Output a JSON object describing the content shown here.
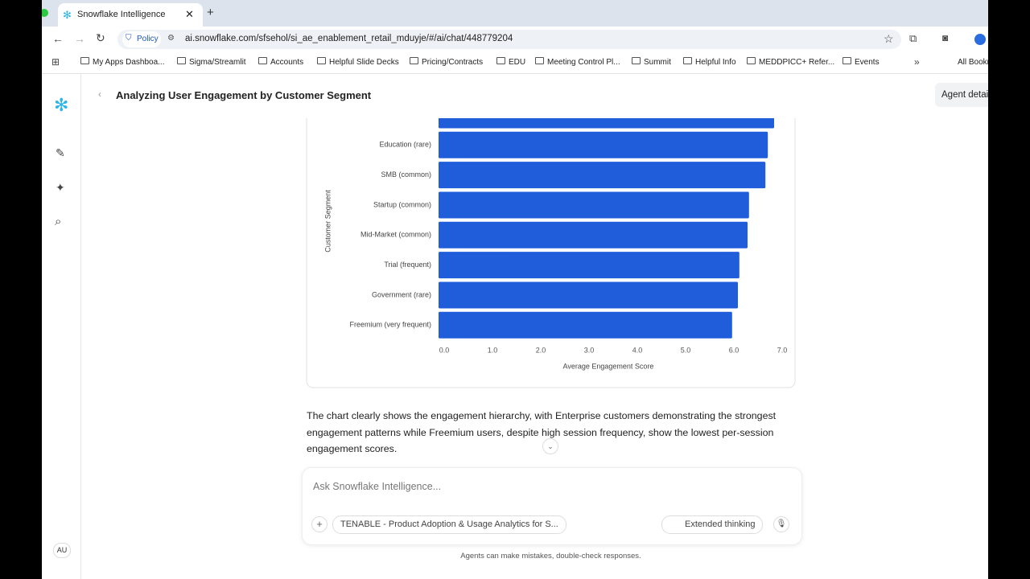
{
  "browser": {
    "tab_title": "Snowflake Intelligence",
    "policy": "Policy",
    "url": "ai.snowflake.com/sfsehol/si_ae_enablement_retail_mduyje/#/ai/chat/448779204",
    "bookmarks": [
      "My Apps Dashboa...",
      "Sigma/Streamlit",
      "Accounts",
      "Helpful Slide Decks",
      "Pricing/Contracts",
      "EDU",
      "Meeting Control Pl...",
      "Summit",
      "Helpful Info",
      "MEDDPICC+ Refer...",
      "Events"
    ],
    "all_bookmarks": "All Bookmarks"
  },
  "header": {
    "title": "Analyzing User Engagement by Customer Segment",
    "agent_button": "Agent details"
  },
  "sidebar": {
    "avatar": "AU"
  },
  "chart_data": {
    "type": "bar",
    "orientation": "horizontal",
    "color": "#1f5ddb",
    "y_label": "Customer Segment",
    "x_label": "Average Engagement Score",
    "categories": [
      null,
      "Education (rare)",
      "SMB (common)",
      "Startup (common)",
      "Mid-Market (common)",
      "Trial (frequent)",
      "Government (rare)",
      "Freemium (very frequent)"
    ],
    "values": [
      6.95,
      6.82,
      6.77,
      6.43,
      6.4,
      6.23,
      6.2,
      6.08
    ],
    "xlim": [
      0,
      7
    ],
    "xticks": [
      {
        "value": 0,
        "label": "0.0"
      },
      {
        "value": 1,
        "label": "1.0"
      },
      {
        "value": 2,
        "label": "2.0"
      },
      {
        "value": 3,
        "label": "3.0"
      },
      {
        "value": 4,
        "label": "4.0"
      },
      {
        "value": 5,
        "label": "5.0"
      },
      {
        "value": 6,
        "label": "6.0"
      },
      {
        "value": 7,
        "label": "7.0"
      }
    ]
  },
  "message": "The chart clearly shows the engagement hierarchy, with Enterprise customers demonstrating the strongest engagement patterns while Freemium users, despite high session frequency, show the lowest per-session engagement scores.",
  "composer": {
    "placeholder": "Ask Snowflake Intelligence...",
    "agent_chip": "TENABLE - Product Adoption & Usage Analytics for S...",
    "extended_thinking": "Extended thinking"
  },
  "disclaimer": "Agents can make mistakes, double-check responses."
}
